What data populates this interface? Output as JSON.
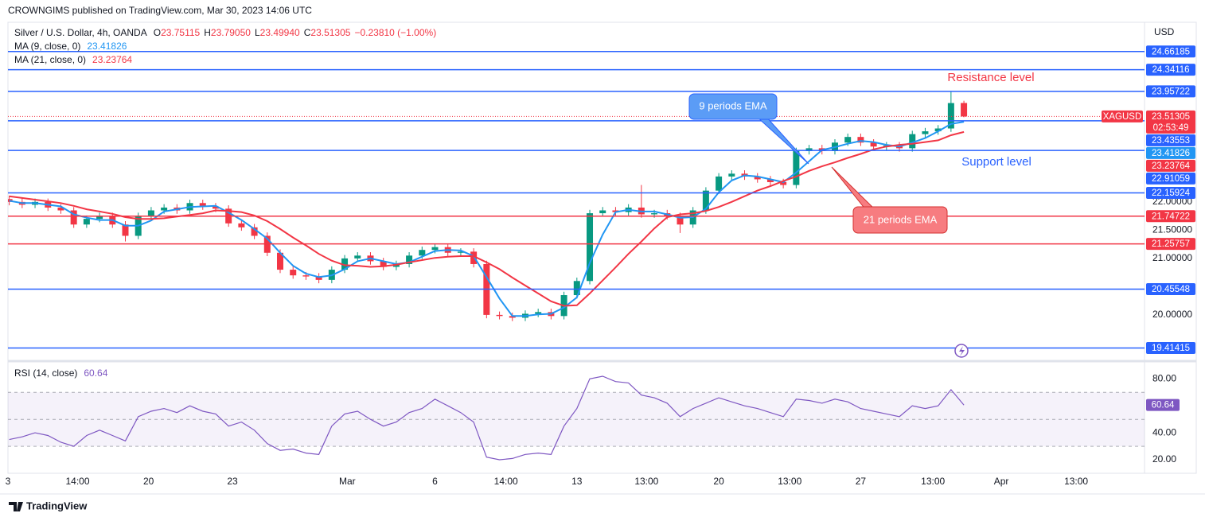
{
  "header": {
    "published": "CROWNGIMS published on TradingView.com, Mar 30, 2023 14:06 UTC",
    "currency": "USD",
    "symbol_tag": "XAGUSD",
    "countdown": "02:53:49",
    "brand": "TradingView"
  },
  "chart_data": {
    "type": "candlestick",
    "title": "Silver / U.S. Dollar, 4h, OANDA",
    "ohlc_legend": [
      {
        "key": "O",
        "value": "23.75115"
      },
      {
        "key": "H",
        "value": "23.79050"
      },
      {
        "key": "L",
        "value": "23.49940"
      },
      {
        "key": "C",
        "value": "23.51305"
      }
    ],
    "change": "−0.23810 (−1.00%)",
    "x": [
      0,
      1,
      2,
      3,
      4,
      5,
      6,
      7,
      8,
      9,
      10,
      11,
      12,
      13,
      14,
      15,
      16,
      17,
      18,
      19,
      20,
      21,
      22,
      23,
      24,
      25,
      26,
      27,
      28,
      29,
      30,
      31,
      32,
      33,
      34,
      35,
      36,
      37,
      38,
      39,
      40,
      41,
      42,
      43,
      44,
      45,
      46,
      47,
      48,
      49,
      50,
      51,
      52,
      53,
      54,
      55,
      56,
      57,
      58,
      59,
      60,
      61,
      62,
      63,
      64,
      65,
      66,
      67,
      68,
      69,
      70,
      71,
      72,
      73,
      74
    ],
    "open": [
      22.05,
      22.0,
      21.95,
      22.0,
      21.9,
      21.85,
      21.6,
      21.7,
      21.75,
      21.6,
      21.4,
      21.75,
      21.85,
      21.9,
      21.85,
      21.98,
      21.92,
      21.88,
      21.62,
      21.55,
      21.4,
      21.1,
      20.8,
      20.7,
      20.68,
      20.62,
      20.8,
      21.0,
      21.05,
      20.95,
      20.85,
      20.9,
      21.05,
      21.15,
      21.2,
      21.1,
      21.12,
      20.9,
      20.0,
      19.98,
      19.95,
      20.02,
      20.05,
      19.98,
      20.35,
      20.6,
      21.8,
      21.85,
      21.82,
      21.9,
      21.78,
      21.8,
      21.75,
      21.6,
      21.85,
      22.2,
      22.45,
      22.5,
      22.45,
      22.4,
      22.35,
      22.3,
      22.9,
      22.95,
      22.9,
      23.05,
      23.15,
      23.05,
      22.98,
      23.0,
      22.95,
      23.2,
      23.25,
      23.3,
      23.75115
    ],
    "high": [
      22.11,
      22.06,
      22.06,
      22.06,
      21.96,
      21.91,
      21.76,
      21.81,
      21.81,
      21.66,
      21.81,
      21.91,
      21.96,
      21.96,
      22.04,
      22.04,
      21.98,
      21.94,
      21.68,
      21.61,
      21.46,
      21.16,
      20.86,
      20.76,
      20.74,
      20.86,
      21.06,
      21.11,
      21.11,
      21.01,
      20.96,
      21.11,
      21.21,
      21.26,
      21.26,
      21.18,
      21.18,
      20.96,
      20.06,
      20.04,
      20.08,
      20.11,
      20.11,
      20.41,
      20.66,
      21.86,
      21.91,
      21.91,
      21.96,
      22.3,
      21.86,
      21.86,
      21.81,
      21.91,
      22.26,
      22.51,
      22.56,
      22.56,
      22.51,
      22.46,
      22.41,
      22.96,
      23.01,
      23.01,
      23.11,
      23.21,
      23.21,
      23.11,
      23.06,
      23.06,
      23.26,
      23.31,
      23.36,
      23.95,
      23.7905
    ],
    "low": [
      21.94,
      21.89,
      21.89,
      21.84,
      21.79,
      21.54,
      21.54,
      21.64,
      21.54,
      21.3,
      21.34,
      21.69,
      21.79,
      21.79,
      21.79,
      21.86,
      21.82,
      21.56,
      21.49,
      21.34,
      21.04,
      20.74,
      20.64,
      20.62,
      20.56,
      20.56,
      20.74,
      20.94,
      20.89,
      20.79,
      20.79,
      20.84,
      20.99,
      21.09,
      21.04,
      21.04,
      20.84,
      19.94,
      19.92,
      19.89,
      19.89,
      19.96,
      19.92,
      19.92,
      20.29,
      20.54,
      21.74,
      21.76,
      21.76,
      21.72,
      21.72,
      21.69,
      21.45,
      21.54,
      21.79,
      22.14,
      22.39,
      22.39,
      22.34,
      22.29,
      22.24,
      22.24,
      22.84,
      22.84,
      22.84,
      22.99,
      22.99,
      22.92,
      22.92,
      22.89,
      22.89,
      23.14,
      23.19,
      23.24,
      23.4994
    ],
    "close": [
      22.0,
      21.95,
      22.0,
      21.9,
      21.85,
      21.6,
      21.7,
      21.75,
      21.6,
      21.4,
      21.75,
      21.85,
      21.9,
      21.85,
      21.98,
      21.92,
      21.88,
      21.62,
      21.55,
      21.4,
      21.1,
      20.8,
      20.7,
      20.68,
      20.62,
      20.8,
      21.0,
      21.05,
      20.95,
      20.85,
      20.9,
      21.05,
      21.15,
      21.2,
      21.1,
      21.12,
      20.9,
      20.0,
      19.98,
      19.95,
      20.02,
      20.05,
      19.98,
      20.35,
      20.6,
      21.8,
      21.85,
      21.82,
      21.9,
      21.78,
      21.8,
      21.75,
      21.6,
      21.85,
      22.2,
      22.45,
      22.5,
      22.45,
      22.4,
      22.35,
      22.3,
      22.9,
      22.95,
      22.9,
      23.05,
      23.15,
      23.05,
      22.98,
      23.0,
      22.95,
      23.2,
      23.25,
      23.3,
      23.75,
      23.51305
    ],
    "up_color": "#089981",
    "down_color": "#f23645",
    "xlim": [
      -0.1,
      88
    ],
    "xticks": [
      {
        "value": -0.1,
        "label": "3"
      },
      {
        "value": 5.3,
        "label": "14:00"
      },
      {
        "value": 10.8,
        "label": "20"
      },
      {
        "value": 17.3,
        "label": "23"
      },
      {
        "value": 26.2,
        "label": "Mar"
      },
      {
        "value": 33,
        "label": "6"
      },
      {
        "value": 38.5,
        "label": "14:00"
      },
      {
        "value": 44,
        "label": "13"
      },
      {
        "value": 49.4,
        "label": "13:00"
      },
      {
        "value": 55,
        "label": "20"
      },
      {
        "value": 60.5,
        "label": "13:00"
      },
      {
        "value": 66,
        "label": "27"
      },
      {
        "value": 71.6,
        "label": "13:00"
      },
      {
        "value": 76.9,
        "label": "Apr"
      },
      {
        "value": 82.7,
        "label": "13:00"
      }
    ],
    "ylim": [
      19.21,
      25.18
    ],
    "yticks": [
      {
        "value": 20,
        "label": "20.00000"
      },
      {
        "value": 21,
        "label": "21.00000"
      },
      {
        "value": 21.5,
        "label": "21.50000"
      },
      {
        "value": 22,
        "label": "22.00000"
      }
    ],
    "series": [
      {
        "name": "MA (9, close, 0)",
        "color": "#2196f3",
        "values": [
          22.02,
          21.98,
          21.98,
          21.95,
          21.92,
          21.78,
          21.72,
          21.68,
          21.68,
          21.58,
          21.58,
          21.67,
          21.83,
          21.87,
          21.91,
          21.92,
          21.93,
          21.81,
          21.68,
          21.52,
          21.35,
          21.1,
          20.87,
          20.73,
          20.67,
          20.7,
          20.81,
          20.95,
          21.0,
          20.95,
          20.9,
          20.93,
          21.03,
          21.13,
          21.15,
          21.14,
          21.04,
          20.67,
          20.29,
          19.98,
          19.98,
          20.01,
          20.02,
          20.13,
          20.31,
          20.92,
          21.42,
          21.82,
          21.86,
          21.83,
          21.83,
          21.78,
          21.72,
          21.73,
          21.88,
          22.17,
          22.38,
          22.47,
          22.45,
          22.4,
          22.35,
          22.52,
          22.72,
          22.92,
          22.97,
          23.03,
          23.08,
          23.06,
          23.01,
          22.98,
          23.05,
          23.13,
          23.25,
          23.38,
          23.41826
        ]
      },
      {
        "name": "MA (21, close, 0)",
        "color": "#f23645",
        "values": [
          22.1,
          22.07,
          22.04,
          22.01,
          21.98,
          21.93,
          21.87,
          21.83,
          21.79,
          21.73,
          21.7,
          21.7,
          21.71,
          21.74,
          21.77,
          21.8,
          21.85,
          21.84,
          21.82,
          21.76,
          21.66,
          21.52,
          21.37,
          21.23,
          21.08,
          20.96,
          20.88,
          20.87,
          20.85,
          20.86,
          20.89,
          20.93,
          20.97,
          21.01,
          21.03,
          21.04,
          21.04,
          20.93,
          20.81,
          20.66,
          20.52,
          20.38,
          20.24,
          20.16,
          20.17,
          20.38,
          20.61,
          20.84,
          21.08,
          21.3,
          21.53,
          21.73,
          21.78,
          21.8,
          21.84,
          21.91,
          22.0,
          22.1,
          22.2,
          22.28,
          22.37,
          22.45,
          22.55,
          22.63,
          22.7,
          22.78,
          22.85,
          22.93,
          22.98,
          23.01,
          23.03,
          23.06,
          23.09,
          23.18,
          23.23764
        ]
      }
    ],
    "levels": [
      {
        "value": 24.66185,
        "color": "#2962ff"
      },
      {
        "value": 24.34116,
        "color": "#2962ff"
      },
      {
        "value": 23.95722,
        "color": "#2962ff"
      },
      {
        "value": 23.43553,
        "color": "#2962ff"
      },
      {
        "value": 22.91059,
        "color": "#2962ff"
      },
      {
        "value": 22.15924,
        "color": "#2962ff"
      },
      {
        "value": 21.74722,
        "color": "#f23645"
      },
      {
        "value": 21.25757,
        "color": "#f23645"
      },
      {
        "value": 20.45548,
        "color": "#2962ff"
      },
      {
        "value": 19.41415,
        "color": "#2962ff"
      }
    ],
    "annotations": [
      {
        "text": "Resistance level"
      },
      {
        "text": "Support level"
      },
      {
        "text": "9 periods EMA"
      },
      {
        "text": "21 periods EMA"
      }
    ],
    "rsi": {
      "name": "RSI (14, close)",
      "color": "#7e57c2",
      "values": [
        35,
        37,
        40,
        38,
        33,
        30,
        38,
        42,
        38,
        34,
        52,
        56,
        58,
        55,
        60,
        56,
        54,
        45,
        48,
        42,
        32,
        27,
        28,
        25,
        24,
        45,
        54,
        56,
        50,
        45,
        48,
        55,
        58,
        65,
        60,
        55,
        48,
        22,
        20,
        21,
        24,
        25,
        24,
        45,
        58,
        80,
        82,
        78,
        77,
        68,
        66,
        62,
        52,
        58,
        62,
        66,
        63,
        60,
        58,
        55,
        52,
        65,
        64,
        62,
        65,
        63,
        58,
        56,
        54,
        52,
        60,
        58,
        60,
        72,
        60.64
      ],
      "ylim": [
        10,
        92
      ],
      "yticks": [
        {
          "value": 80,
          "label": "80.00"
        },
        {
          "value": 40,
          "label": "40.00"
        },
        {
          "value": 20,
          "label": "20.00"
        }
      ],
      "band": [
        30,
        70
      ],
      "midline": 50
    }
  }
}
